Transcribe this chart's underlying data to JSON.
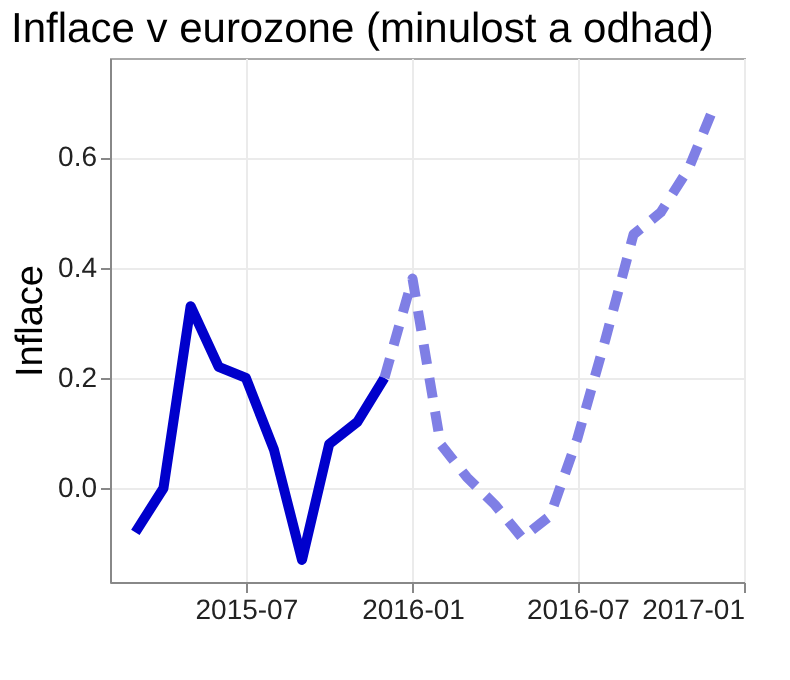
{
  "chart_data": {
    "type": "line",
    "title": "Inflace v eurozone (minulost a odhad)",
    "ylabel": "Inflace",
    "series": [
      {
        "color": "#0000cc",
        "line_style": "solid",
        "x": [
          "2015-03-01",
          "2015-04-01",
          "2015-05-01",
          "2015-06-01",
          "2015-07-01",
          "2015-08-01",
          "2015-09-01",
          "2015-10-01",
          "2015-11-01",
          "2015-12-01"
        ],
        "values": [
          -0.08,
          0.0,
          0.33,
          0.22,
          0.2,
          0.07,
          -0.13,
          0.08,
          0.12,
          0.2
        ]
      },
      {
        "color": "#7f7fe5",
        "line_style": "dashed",
        "x": [
          "2015-12-01",
          "2016-01-01",
          "2016-02-01",
          "2016-03-01",
          "2016-04-01",
          "2016-05-01",
          "2016-06-01",
          "2016-07-01",
          "2016-08-01",
          "2016-09-01",
          "2016-10-01",
          "2016-11-01",
          "2016-12-01"
        ],
        "values": [
          0.2,
          0.38,
          0.08,
          0.02,
          -0.03,
          -0.09,
          -0.05,
          0.09,
          0.27,
          0.46,
          0.5,
          0.58,
          0.7
        ]
      }
    ],
    "xlim": [
      "2015-02-01",
      "2017-01-01"
    ],
    "xticks": [
      {
        "value": "2015-07-01",
        "label": "2015-07"
      },
      {
        "value": "2016-01-01",
        "label": "2016-01"
      },
      {
        "value": "2016-07-01",
        "label": "2016-07"
      },
      {
        "value": "2017-01-01",
        "label": "2017-01"
      }
    ],
    "ylim": [
      -0.17,
      0.78
    ],
    "yticks": [
      {
        "value": 0,
        "label": "0.0"
      },
      {
        "value": 0.2,
        "label": "0.2"
      },
      {
        "value": 0.4,
        "label": "0.4"
      },
      {
        "value": 0.6,
        "label": "0.6"
      }
    ],
    "grid": true,
    "marker": "none"
  }
}
